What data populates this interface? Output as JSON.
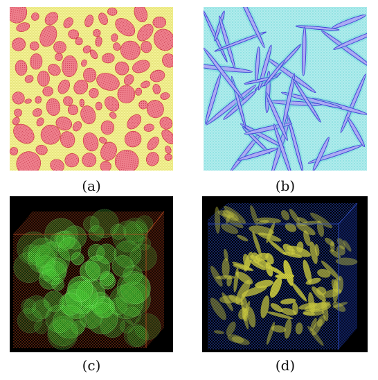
{
  "panels": [
    {
      "id": "a",
      "caption": "(a)",
      "colors": {
        "background": "#f6f49a",
        "inclusion": "#ee7f8c",
        "mesh": "#c8283a"
      },
      "content_icon": "2d-elliptical-inclusions-mesh-icon"
    },
    {
      "id": "b",
      "caption": "(b)",
      "colors": {
        "background": "#bff0ef",
        "fiber": "#3c3ad6",
        "mesh": "#5fd2d6"
      },
      "content_icon": "2d-fiber-inclusions-mesh-icon"
    },
    {
      "id": "c",
      "caption": "(c)",
      "colors": {
        "background": "#000000",
        "box": "#7a2a10",
        "inclusion": "#35c41f"
      },
      "content_icon": "3d-spherical-inclusions-mesh-icon"
    },
    {
      "id": "d",
      "caption": "(d)",
      "colors": {
        "background": "#000000",
        "box": "#1a3aa8",
        "inclusion": "#d8d848"
      },
      "content_icon": "3d-ellipsoidal-inclusions-mesh-icon"
    }
  ]
}
